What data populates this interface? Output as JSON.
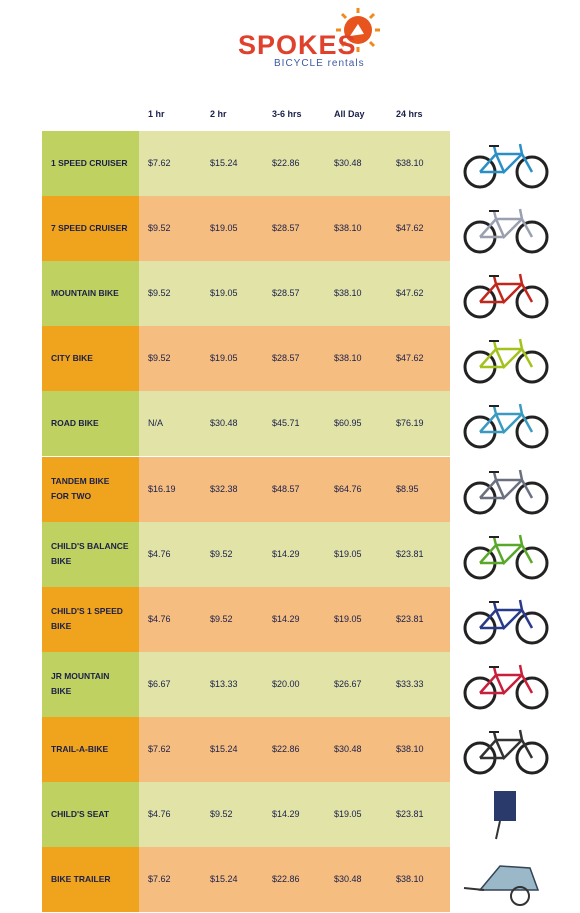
{
  "header": {
    "brand": "SPOKES",
    "tagline": "BICYCLE rentals"
  },
  "table": {
    "columns": [
      "1 hr",
      "2 hr",
      "3-6 hrs",
      "All Day",
      "24 hrs"
    ],
    "rows": [
      {
        "name": "1 SPEED CRUISER",
        "prices": [
          "$7.62",
          "$15.24",
          "$22.86",
          "$30.48",
          "$38.10"
        ]
      },
      {
        "name": "7 SPEED CRUISER",
        "prices": [
          "$9.52",
          "$19.05",
          "$28.57",
          "$38.10",
          "$47.62"
        ]
      },
      {
        "name": "MOUNTAIN BIKE",
        "prices": [
          "$9.52",
          "$19.05",
          "$28.57",
          "$38.10",
          "$47.62"
        ]
      },
      {
        "name": "CITY BIKE",
        "prices": [
          "$9.52",
          "$19.05",
          "$28.57",
          "$38.10",
          "$47.62"
        ]
      },
      {
        "name": "ROAD BIKE",
        "prices": [
          "N/A",
          "$30.48",
          "$45.71",
          "$60.95",
          "$76.19"
        ]
      },
      {
        "name": "TANDEM BIKE FOR TWO",
        "prices": [
          "$16.19",
          "$32.38",
          "$48.57",
          "$64.76",
          "$8.95"
        ]
      },
      {
        "name": "CHILD'S BALANCE BIKE",
        "prices": [
          "$4.76",
          "$9.52",
          "$14.29",
          "$19.05",
          "$23.81"
        ]
      },
      {
        "name": "CHILD'S 1 SPEED BIKE",
        "prices": [
          "$4.76",
          "$9.52",
          "$14.29",
          "$19.05",
          "$23.81"
        ]
      },
      {
        "name": "JR MOUNTAIN BIKE",
        "prices": [
          "$6.67",
          "$13.33",
          "$20.00",
          "$26.67",
          "$33.33"
        ]
      },
      {
        "name": "TRAIL-A-BIKE",
        "prices": [
          "$7.62",
          "$15.24",
          "$22.86",
          "$30.48",
          "$38.10"
        ]
      },
      {
        "name": "CHILD'S SEAT",
        "prices": [
          "$4.76",
          "$9.52",
          "$14.29",
          "$19.05",
          "$23.81"
        ]
      },
      {
        "name": "BIKE TRAILER",
        "prices": [
          "$7.62",
          "$15.24",
          "$22.86",
          "$30.48",
          "$38.10"
        ]
      }
    ]
  }
}
